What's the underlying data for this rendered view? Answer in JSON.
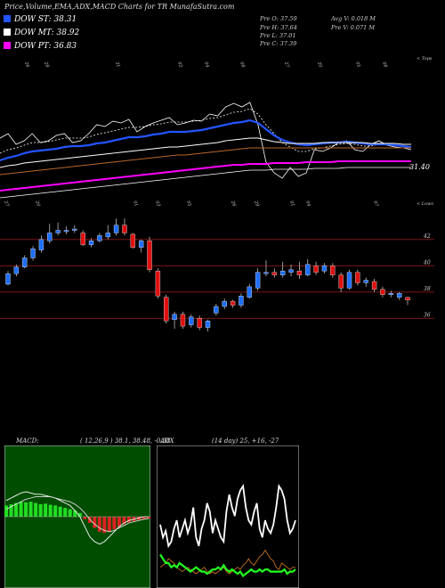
{
  "header": {
    "title": "Price,Volume,EMA,ADX,MACD Charts for TR MunafaSutra.com"
  },
  "legend": [
    {
      "label": "DOW ST: 38.31",
      "color": "#2255ff"
    },
    {
      "label": "DOW MT: 38.92",
      "color": "#ffffff"
    },
    {
      "label": "DOW PT: 36.83",
      "color": "#ff00ff"
    }
  ],
  "stats": {
    "prev_open": "Pre  O: 37.59",
    "prev_high": "Pre  H: 37.64",
    "prev_low": "Pre  L: 37.01",
    "prev_close": "Pre  C: 37.39",
    "avg_volume": "Avg V: 0.018  M",
    "prev_volume": "Pre  V: 0.071  M"
  },
  "ema_panel": {
    "top_right_label": "< Tops",
    "bottom_right_label": "< Lows",
    "price_label": "31.40",
    "top_dates": [
      "26",
      "28",
      "31",
      "02",
      "04",
      "08",
      "27",
      "30",
      "05",
      "08"
    ],
    "bottom_dates": [
      "27",
      "20",
      "01",
      "03",
      "05",
      "26",
      "29",
      "01",
      "04",
      "07"
    ]
  },
  "chart_data": {
    "type": "candlestick",
    "y_ticks": [
      42,
      40,
      38,
      36
    ],
    "ylim": [
      35,
      44.5
    ],
    "candles": [
      {
        "o": 38.6,
        "c": 39.4,
        "h": 39.6,
        "l": 38.5
      },
      {
        "o": 39.4,
        "c": 39.9,
        "h": 40.1,
        "l": 39.2
      },
      {
        "o": 39.9,
        "c": 40.6,
        "h": 40.8,
        "l": 39.8
      },
      {
        "o": 40.6,
        "c": 41.3,
        "h": 41.5,
        "l": 40.4
      },
      {
        "o": 41.2,
        "c": 42.0,
        "h": 42.3,
        "l": 41.0
      },
      {
        "o": 41.9,
        "c": 42.5,
        "h": 43.2,
        "l": 41.7
      },
      {
        "o": 42.5,
        "c": 42.7,
        "h": 43.3,
        "l": 42.3
      },
      {
        "o": 42.6,
        "c": 42.7,
        "h": 43.0,
        "l": 42.4
      },
      {
        "o": 42.7,
        "c": 42.8,
        "h": 43.1,
        "l": 42.5
      },
      {
        "o": 42.5,
        "c": 41.6,
        "h": 42.7,
        "l": 41.5
      },
      {
        "o": 41.6,
        "c": 41.9,
        "h": 42.1,
        "l": 41.4
      },
      {
        "o": 41.9,
        "c": 42.3,
        "h": 42.5,
        "l": 41.8
      },
      {
        "o": 42.2,
        "c": 42.5,
        "h": 43.1,
        "l": 42.0
      },
      {
        "o": 42.5,
        "c": 43.1,
        "h": 43.6,
        "l": 42.3
      },
      {
        "o": 43.1,
        "c": 42.5,
        "h": 43.6,
        "l": 42.3
      },
      {
        "o": 42.4,
        "c": 41.4,
        "h": 42.5,
        "l": 41.3
      },
      {
        "o": 41.4,
        "c": 41.9,
        "h": 42.0,
        "l": 41.0
      },
      {
        "o": 41.9,
        "c": 39.7,
        "h": 42.2,
        "l": 39.5
      },
      {
        "o": 39.6,
        "c": 37.7,
        "h": 39.8,
        "l": 37.5
      },
      {
        "o": 37.6,
        "c": 35.8,
        "h": 37.8,
        "l": 35.6
      },
      {
        "o": 35.9,
        "c": 36.3,
        "h": 36.5,
        "l": 35.2
      },
      {
        "o": 36.3,
        "c": 35.4,
        "h": 36.5,
        "l": 35.2
      },
      {
        "o": 35.5,
        "c": 36.1,
        "h": 36.3,
        "l": 35.3
      },
      {
        "o": 36.0,
        "c": 35.3,
        "h": 36.2,
        "l": 35.1
      },
      {
        "o": 35.3,
        "c": 35.8,
        "h": 35.9,
        "l": 35.0
      },
      {
        "o": 36.4,
        "c": 36.9,
        "h": 37.1,
        "l": 36.2
      },
      {
        "o": 36.9,
        "c": 37.3,
        "h": 37.5,
        "l": 36.7
      },
      {
        "o": 37.3,
        "c": 37.0,
        "h": 37.4,
        "l": 36.8
      },
      {
        "o": 37.0,
        "c": 37.7,
        "h": 37.9,
        "l": 36.8
      },
      {
        "o": 37.6,
        "c": 38.4,
        "h": 38.6,
        "l": 37.5
      },
      {
        "o": 38.3,
        "c": 39.5,
        "h": 39.8,
        "l": 38.1
      },
      {
        "o": 39.4,
        "c": 39.5,
        "h": 40.4,
        "l": 39.2
      },
      {
        "o": 39.5,
        "c": 39.3,
        "h": 39.8,
        "l": 39.1
      },
      {
        "o": 39.3,
        "c": 39.6,
        "h": 40.3,
        "l": 39.1
      },
      {
        "o": 39.5,
        "c": 39.7,
        "h": 40.1,
        "l": 39.2
      },
      {
        "o": 39.6,
        "c": 39.3,
        "h": 40.3,
        "l": 39.0
      },
      {
        "o": 39.3,
        "c": 40.1,
        "h": 40.5,
        "l": 39.2
      },
      {
        "o": 40.0,
        "c": 39.5,
        "h": 40.3,
        "l": 39.3
      },
      {
        "o": 39.6,
        "c": 40.0,
        "h": 40.2,
        "l": 39.4
      },
      {
        "o": 40.0,
        "c": 39.3,
        "h": 40.2,
        "l": 39.1
      },
      {
        "o": 39.3,
        "c": 38.3,
        "h": 39.5,
        "l": 38.0
      },
      {
        "o": 38.3,
        "c": 39.5,
        "h": 39.7,
        "l": 38.2
      },
      {
        "o": 39.5,
        "c": 38.7,
        "h": 39.7,
        "l": 38.5
      },
      {
        "o": 38.7,
        "c": 38.9,
        "h": 39.1,
        "l": 38.4
      },
      {
        "o": 38.8,
        "c": 38.2,
        "h": 39.0,
        "l": 38.0
      },
      {
        "o": 38.2,
        "c": 37.8,
        "h": 38.4,
        "l": 37.6
      },
      {
        "o": 37.8,
        "c": 37.9,
        "h": 38.1,
        "l": 37.6
      },
      {
        "o": 37.6,
        "c": 37.9,
        "h": 38.0,
        "l": 37.4
      },
      {
        "o": 37.59,
        "c": 37.39,
        "h": 37.64,
        "l": 37.01
      }
    ],
    "ema": {
      "lines": [
        {
          "name": "price",
          "color": "#ffffff",
          "width": 0.8,
          "values": [
            155,
            150,
            162,
            158,
            150,
            160,
            158,
            152,
            150,
            160,
            158,
            150,
            140,
            142,
            136,
            138,
            134,
            148,
            142,
            138,
            135,
            132,
            140,
            138,
            135,
            136,
            128,
            130,
            120,
            116,
            120,
            115,
            140,
            182,
            194,
            200,
            188,
            198,
            194,
            168,
            170,
            166,
            160,
            158,
            168,
            170,
            162,
            158,
            163,
            165,
            166,
            168
          ]
        },
        {
          "name": "ema-short",
          "color": "#ffffff",
          "width": 0.8,
          "dash": "2,2",
          "values": [
            172,
            168,
            166,
            163,
            160,
            160,
            159,
            157,
            155,
            155,
            155,
            154,
            151,
            149,
            147,
            145,
            143,
            143,
            142,
            140,
            139,
            137,
            137,
            137,
            136,
            135,
            133,
            132,
            129,
            126,
            125,
            122,
            128,
            140,
            150,
            160,
            165,
            170,
            170,
            167,
            166,
            164,
            162,
            161,
            162,
            164,
            164,
            162,
            162,
            163,
            164,
            165
          ]
        },
        {
          "name": "ema-blue",
          "color": "#2255ff",
          "width": 2.2,
          "values": [
            180,
            177,
            175,
            172,
            170,
            169,
            168,
            167,
            165,
            164,
            164,
            163,
            161,
            160,
            158,
            156,
            154,
            154,
            153,
            151,
            150,
            148,
            148,
            148,
            147,
            146,
            144,
            142,
            140,
            138,
            137,
            135,
            138,
            145,
            152,
            157,
            160,
            162,
            163,
            162,
            161,
            160,
            160,
            159,
            160,
            161,
            162,
            162,
            162,
            163,
            164,
            165
          ]
        },
        {
          "name": "ema-mid",
          "color": "#ffffff",
          "width": 0.9,
          "values": [
            188,
            186,
            185,
            183,
            182,
            181,
            180,
            179,
            178,
            177,
            176,
            175,
            174,
            173,
            172,
            171,
            170,
            169,
            168,
            167,
            166,
            165,
            165,
            164,
            163,
            162,
            161,
            160,
            158,
            157,
            156,
            155,
            155,
            157,
            159,
            160,
            161,
            161,
            161,
            161,
            160,
            160,
            160,
            160,
            160,
            160,
            161,
            161,
            161,
            161,
            162,
            162
          ]
        },
        {
          "name": "ema-brown",
          "color": "#b8662a",
          "width": 1.0,
          "values": [
            196,
            195,
            194,
            193,
            192,
            191,
            190,
            189,
            188,
            187,
            186,
            185,
            184,
            183,
            182,
            181,
            180,
            179,
            178,
            177,
            176,
            175,
            174,
            174,
            173,
            172,
            171,
            170,
            169,
            168,
            167,
            166,
            166,
            166,
            166,
            166,
            166,
            166,
            166,
            166,
            166,
            166,
            166,
            166,
            166,
            166,
            166,
            166,
            166,
            166,
            166,
            166
          ]
        },
        {
          "name": "ema-magenta",
          "color": "#ff00ff",
          "width": 2.0,
          "values": [
            214,
            213,
            212,
            211,
            210,
            209,
            208,
            207,
            206,
            205,
            204,
            203,
            202,
            201,
            200,
            199,
            198,
            197,
            196,
            195,
            194,
            193,
            192,
            191,
            190,
            189,
            188,
            187,
            186,
            185,
            185,
            184,
            184,
            184,
            183,
            183,
            183,
            183,
            182,
            182,
            182,
            182,
            181,
            181,
            181,
            181,
            181,
            181,
            181,
            181,
            181,
            181
          ]
        },
        {
          "name": "ema-white-low",
          "color": "#ffffff",
          "width": 0.8,
          "values": [
            222,
            221,
            220,
            219,
            218,
            217,
            216,
            215,
            214,
            213,
            212,
            211,
            210,
            209,
            208,
            207,
            206,
            205,
            204,
            203,
            202,
            201,
            200,
            199,
            198,
            197,
            196,
            195,
            194,
            193,
            192,
            191,
            191,
            191,
            190,
            190,
            190,
            190,
            190,
            189,
            189,
            189,
            189,
            188,
            188,
            188,
            188,
            188,
            188,
            188,
            188,
            188
          ]
        }
      ]
    },
    "macd": {
      "label": "MACD:",
      "params": "( 12,26,9 ) 38.1, 38.48, -0.38",
      "hist": [
        0.9,
        1.0,
        1.1,
        1.2,
        1.15,
        1.2,
        1.1,
        1.0,
        1.05,
        0.95,
        0.9,
        0.8,
        0.7,
        0.6,
        0.5,
        0.3,
        -0.2,
        -0.5,
        -0.9,
        -1.2,
        -1.3,
        -1.2,
        -1.0,
        -0.8,
        -0.6,
        -0.45,
        -0.35,
        -0.25,
        -0.2,
        -0.15
      ],
      "line_a": [
        1.3,
        1.5,
        1.7,
        1.9,
        2.0,
        1.9,
        1.8,
        1.8,
        1.7,
        1.6,
        1.5,
        1.3,
        1.1,
        0.9,
        0.5,
        0.0,
        -0.8,
        -1.6,
        -2.0,
        -2.2,
        -2.0,
        -1.6,
        -1.2,
        -0.8,
        -0.5,
        -0.3,
        -0.2,
        -0.1,
        0.0,
        0.0
      ],
      "line_b": [
        0.6,
        0.8,
        1.0,
        1.2,
        1.4,
        1.5,
        1.6,
        1.6,
        1.6,
        1.6,
        1.5,
        1.4,
        1.3,
        1.2,
        1.0,
        0.7,
        0.3,
        -0.2,
        -0.6,
        -0.9,
        -1.1,
        -1.2,
        -1.1,
        -0.9,
        -0.7,
        -0.5,
        -0.4,
        -0.3,
        -0.2,
        -0.15
      ]
    },
    "adx": {
      "label": "ADX",
      "params": "(14  day) 25, +16, -27",
      "adx_line": [
        28,
        22,
        25,
        18,
        20,
        26,
        30,
        22,
        26,
        30,
        24,
        28,
        36,
        22,
        18,
        26,
        30,
        38,
        34,
        24,
        30,
        26,
        22,
        20,
        34,
        42,
        36,
        32,
        40,
        44,
        46,
        36,
        30,
        28,
        34,
        38,
        26,
        22,
        30,
        26,
        24,
        28,
        36,
        46,
        44,
        40,
        30,
        24,
        26,
        30
      ],
      "plus_di": [
        14,
        12,
        10,
        10,
        8,
        9,
        8,
        10,
        9,
        8,
        7,
        6,
        7,
        8,
        7,
        6,
        6,
        5,
        6,
        7,
        7,
        8,
        7,
        9,
        7,
        6,
        7,
        6,
        5,
        6,
        4,
        5,
        6,
        7,
        6,
        6,
        7,
        6,
        7,
        7,
        6,
        6,
        6,
        6,
        6,
        7,
        5,
        6,
        6,
        7
      ],
      "minus_di": [
        8,
        9,
        10,
        12,
        11,
        10,
        8,
        7,
        6,
        7,
        8,
        7,
        6,
        5,
        6,
        7,
        8,
        6,
        5,
        6,
        5,
        6,
        7,
        8,
        6,
        5,
        6,
        7,
        8,
        7,
        9,
        10,
        12,
        10,
        9,
        11,
        13,
        14,
        16,
        14,
        12,
        11,
        8,
        7,
        10,
        9,
        8,
        7,
        8,
        8
      ]
    }
  }
}
